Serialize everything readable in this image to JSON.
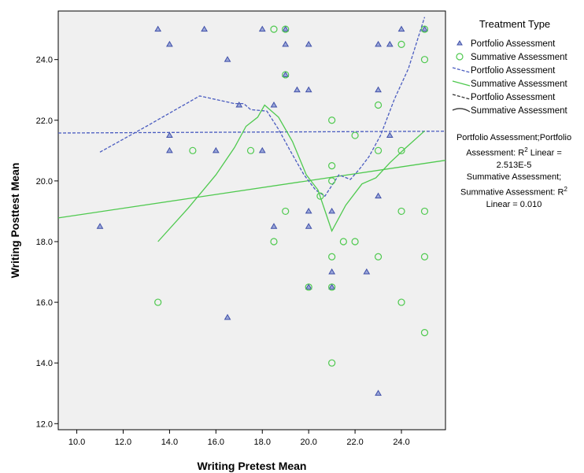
{
  "chart_data": {
    "type": "scatter",
    "xlabel": "Writing Pretest Mean",
    "ylabel": "Writing Posttest Mean",
    "xlim": [
      9.2,
      25.9
    ],
    "ylim": [
      11.8,
      25.6
    ],
    "xticks": [
      "10.0",
      "12.0",
      "14.0",
      "16.0",
      "18.0",
      "20.0",
      "22.0",
      "24.0"
    ],
    "yticks": [
      "12.0",
      "14.0",
      "16.0",
      "18.0",
      "20.0",
      "22.0",
      "24.0"
    ],
    "xtick_values": [
      10,
      12,
      14,
      16,
      18,
      20,
      22,
      24
    ],
    "ytick_values": [
      12,
      14,
      16,
      18,
      20,
      22,
      24
    ],
    "background_color": "#f0f0f0",
    "grid": false,
    "legend_title": "Treatment Type",
    "legend_position": "right",
    "legend": [
      {
        "label": "Portfolio Assessment",
        "kind": "triangle-marker",
        "color": "#3f4fa8"
      },
      {
        "label": "Summative Assessment",
        "kind": "circle-marker",
        "color": "#4ec94e"
      },
      {
        "label": "Portfolio Assessment",
        "kind": "dashed-line",
        "color": "#4a5cc0"
      },
      {
        "label": "Summative Assessment",
        "kind": "solid-line",
        "color": "#4ec94e"
      },
      {
        "label": "Portfolio Assessment",
        "kind": "dashed-line-dark",
        "color": "#333333"
      },
      {
        "label": "Summative Assessment",
        "kind": "solid-line-dark",
        "color": "#333333"
      }
    ],
    "series": [
      {
        "name": "Portfolio Assessment",
        "marker": "triangle",
        "color": "#3f4fa8",
        "points": [
          [
            13.5,
            25
          ],
          [
            15.5,
            25
          ],
          [
            18,
            25
          ],
          [
            19,
            25
          ],
          [
            24,
            25
          ],
          [
            25,
            25
          ],
          [
            14,
            24.5
          ],
          [
            19,
            24.5
          ],
          [
            20,
            24.5
          ],
          [
            23,
            24.5
          ],
          [
            23.5,
            24.5
          ],
          [
            16.5,
            24
          ],
          [
            19,
            23.5
          ],
          [
            19.5,
            23
          ],
          [
            20,
            23
          ],
          [
            23,
            23
          ],
          [
            17,
            22.5
          ],
          [
            18.5,
            22.5
          ],
          [
            14,
            21.5
          ],
          [
            23.5,
            21.5
          ],
          [
            14,
            21
          ],
          [
            16,
            21
          ],
          [
            18,
            21
          ],
          [
            11,
            18.5
          ],
          [
            18.5,
            18.5
          ],
          [
            20,
            18.5
          ],
          [
            20,
            19
          ],
          [
            21,
            19
          ],
          [
            23,
            19.5
          ],
          [
            21,
            17
          ],
          [
            22.5,
            17
          ],
          [
            20,
            16.5
          ],
          [
            21,
            16.5
          ],
          [
            16.5,
            15.5
          ],
          [
            23,
            13
          ]
        ]
      },
      {
        "name": "Summative Assessment",
        "marker": "circle",
        "color": "#4ec94e",
        "points": [
          [
            18.5,
            25
          ],
          [
            19,
            25
          ],
          [
            25,
            25
          ],
          [
            24,
            24.5
          ],
          [
            25,
            24
          ],
          [
            19,
            23.5
          ],
          [
            23,
            22.5
          ],
          [
            21,
            22
          ],
          [
            22,
            21.5
          ],
          [
            15,
            21
          ],
          [
            17.5,
            21
          ],
          [
            23,
            21
          ],
          [
            24,
            21
          ],
          [
            21,
            20.5
          ],
          [
            21,
            20
          ],
          [
            20.5,
            19.5
          ],
          [
            19,
            19
          ],
          [
            24,
            19
          ],
          [
            25,
            19
          ],
          [
            18.5,
            18
          ],
          [
            21.5,
            18
          ],
          [
            22,
            18
          ],
          [
            21,
            17.5
          ],
          [
            23,
            17.5
          ],
          [
            25,
            17.5
          ],
          [
            20,
            16.5
          ],
          [
            21,
            16.5
          ],
          [
            13.5,
            16
          ],
          [
            24,
            16
          ],
          [
            25,
            15
          ],
          [
            21,
            14
          ]
        ]
      }
    ],
    "fit_lines": [
      {
        "name": "Portfolio Assessment",
        "style": "dashed",
        "color": "#4a5cc0",
        "kind": "linear",
        "points": [
          [
            9.2,
            21.58
          ],
          [
            25.9,
            21.64
          ]
        ]
      },
      {
        "name": "Summative Assessment",
        "style": "solid",
        "color": "#4ec94e",
        "kind": "linear",
        "points": [
          [
            9.2,
            18.78
          ],
          [
            25.9,
            20.68
          ]
        ]
      },
      {
        "name": "Portfolio Assessment",
        "style": "dashed",
        "color": "#4a5cc0",
        "kind": "loess",
        "points": [
          [
            11,
            20.95
          ],
          [
            13,
            21.8
          ],
          [
            15.3,
            22.8
          ],
          [
            16.8,
            22.55
          ],
          [
            17.2,
            22.55
          ],
          [
            17.5,
            22.35
          ],
          [
            18.2,
            22.3
          ],
          [
            18.7,
            21.7
          ],
          [
            19.2,
            21
          ],
          [
            19.8,
            20.2
          ],
          [
            20.3,
            19.7
          ],
          [
            20.7,
            19.5
          ],
          [
            21.3,
            20.2
          ],
          [
            21.8,
            20.05
          ],
          [
            22.2,
            20.4
          ],
          [
            22.6,
            20.8
          ],
          [
            23.1,
            21.5
          ],
          [
            23.7,
            22.7
          ],
          [
            24.3,
            23.7
          ],
          [
            25,
            25.4
          ]
        ]
      },
      {
        "name": "Summative Assessment",
        "style": "solid",
        "color": "#4ec94e",
        "kind": "loess",
        "points": [
          [
            13.5,
            18
          ],
          [
            14.8,
            19.1
          ],
          [
            16,
            20.2
          ],
          [
            16.8,
            21.1
          ],
          [
            17.3,
            21.8
          ],
          [
            17.8,
            22.1
          ],
          [
            18.1,
            22.5
          ],
          [
            18.7,
            22.1
          ],
          [
            19.3,
            21.3
          ],
          [
            19.9,
            20.2
          ],
          [
            20.4,
            19.7
          ],
          [
            21,
            18.35
          ],
          [
            21.6,
            19.2
          ],
          [
            22.3,
            19.9
          ],
          [
            22.9,
            20.1
          ],
          [
            23.5,
            20.6
          ],
          [
            24.2,
            21.1
          ],
          [
            25,
            21.65
          ]
        ]
      }
    ],
    "annotations": [
      {
        "line1": "Portfolio Assessment;Portfolio",
        "line2_pre": "Assessment: R",
        "sup": "2",
        "line2_post": " Linear =",
        "line3": "2.513E-5"
      },
      {
        "line1": "Summative Assessment;",
        "line2_pre": "Summative Assessment: R",
        "sup": "2",
        "line3": "Linear = 0.010"
      }
    ]
  }
}
